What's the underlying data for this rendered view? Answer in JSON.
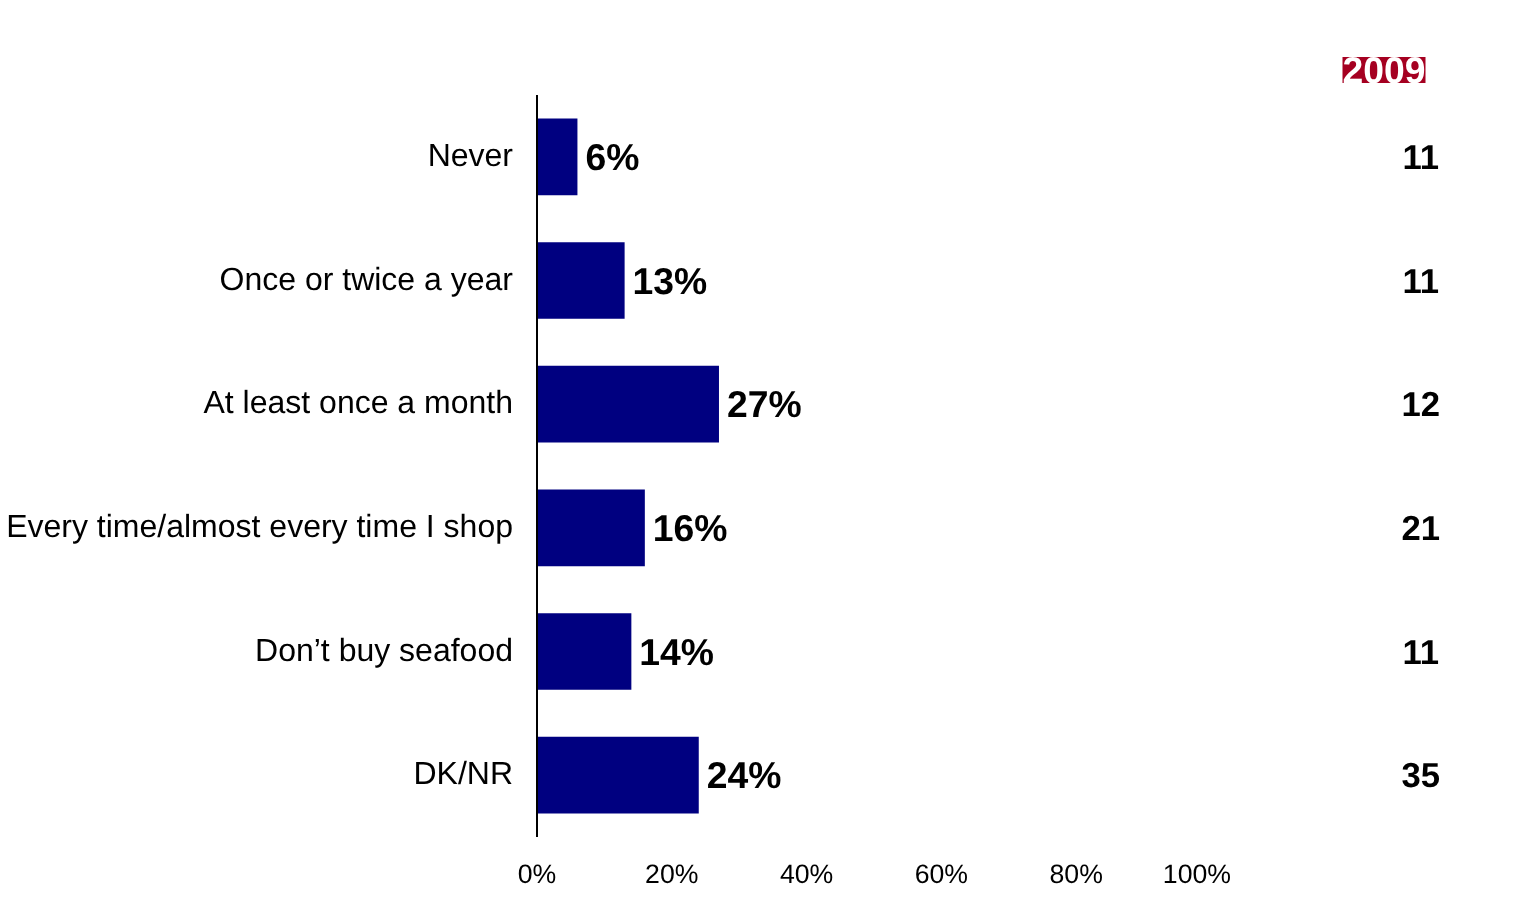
{
  "chart_data": {
    "type": "bar",
    "orientation": "horizontal",
    "categories": [
      "Never",
      "Once or twice a year",
      "At least once a month",
      "Every time/almost every time I shop",
      "Don’t buy seafood",
      "DK/NR"
    ],
    "values": [
      6,
      13,
      27,
      16,
      14,
      24
    ],
    "value_labels": [
      "6%",
      "13%",
      "27%",
      "16%",
      "14%",
      "24%"
    ],
    "color": "#000080",
    "xlim": [
      0,
      100
    ],
    "xticks": [
      {
        "value": 0,
        "label": "0%"
      },
      {
        "value": 20,
        "label": "20%"
      },
      {
        "value": 40,
        "label": "40%"
      },
      {
        "value": 60,
        "label": "60%"
      },
      {
        "value": 80,
        "label": "80%"
      },
      {
        "value": 100,
        "label": "100%"
      }
    ],
    "grid": false,
    "annotations": [
      "2009",
      "11",
      "11",
      "12",
      "21",
      "11",
      "35"
    ]
  }
}
